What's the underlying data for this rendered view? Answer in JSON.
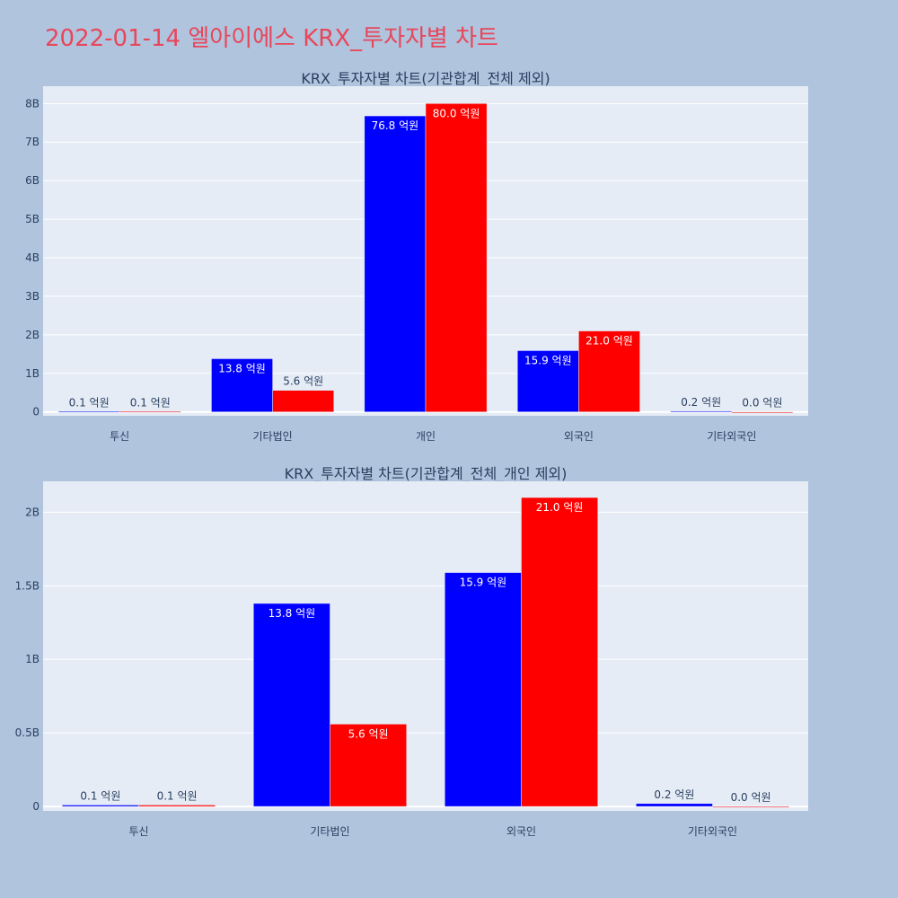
{
  "page": {
    "title": "2022-01-14 엘아이에스 KRX_투자자별 차트"
  },
  "colors": {
    "background": "#b0c4de",
    "plot_background": "#e5ecf6",
    "title": "#e8465a",
    "series_1": "#0000ff",
    "series_2": "#ff0000",
    "text": "#2a3f5f"
  },
  "chart_data": [
    {
      "type": "bar",
      "title": "KRX_투자자별 차트(기관합계_전체 제외)",
      "categories": [
        "투신",
        "기타법인",
        "개인",
        "외국인",
        "기타외국인"
      ],
      "series": [
        {
          "color": "#0000ff",
          "values": [
            10000000,
            1380000000,
            7680000000,
            1590000000,
            20000000
          ],
          "labels": [
            "0.1 억원",
            "13.8 억원",
            "76.8 억원",
            "15.9 억원",
            "0.2 억원"
          ]
        },
        {
          "color": "#ff0000",
          "values": [
            10000000,
            560000000,
            8000000000,
            2100000000,
            0
          ],
          "labels": [
            "0.1 억원",
            "5.6 억원",
            "80.0 억원",
            "21.0 억원",
            "0.0 억원"
          ]
        }
      ],
      "ylim": [
        -100000000,
        8450000000
      ],
      "yticks": [
        0,
        1000000000,
        2000000000,
        3000000000,
        4000000000,
        5000000000,
        6000000000,
        7000000000,
        8000000000
      ],
      "ytick_labels": [
        "0",
        "1B",
        "2B",
        "3B",
        "4B",
        "5B",
        "6B",
        "7B",
        "8B"
      ],
      "grid": true,
      "legend": "none"
    },
    {
      "type": "bar",
      "title": "KRX_투자자별 차트(기관합계_전체_개인 제외)",
      "categories": [
        "투신",
        "기타법인",
        "외국인",
        "기타외국인"
      ],
      "series": [
        {
          "color": "#0000ff",
          "values": [
            10000000,
            1380000000,
            1590000000,
            20000000
          ],
          "labels": [
            "0.1 억원",
            "13.8 억원",
            "15.9 억원",
            "0.2 억원"
          ]
        },
        {
          "color": "#ff0000",
          "values": [
            10000000,
            560000000,
            2100000000,
            0
          ],
          "labels": [
            "0.1 억원",
            "5.6 억원",
            "21.0 억원",
            "0.0 억원"
          ]
        }
      ],
      "ylim": [
        -30000000,
        2210000000
      ],
      "yticks": [
        0,
        500000000,
        1000000000,
        1500000000,
        2000000000
      ],
      "ytick_labels": [
        "0",
        "0.5B",
        "1B",
        "1.5B",
        "2B"
      ],
      "grid": true,
      "legend": "none"
    }
  ]
}
